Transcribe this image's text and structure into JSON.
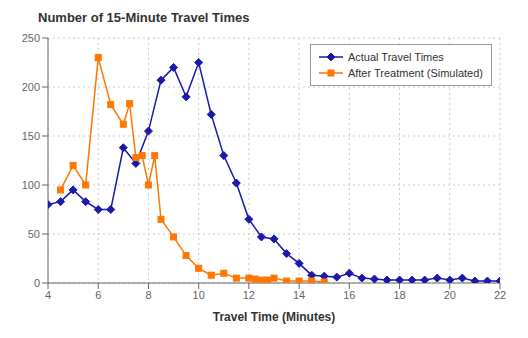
{
  "chart_data": {
    "type": "line",
    "title": "Number of 15-Minute Travel Times",
    "x_label": "Travel Time (Minutes)",
    "series": [
      {
        "name": "Actual Travel Times",
        "color": "#1a1aaa",
        "marker": "diamond",
        "x": [
          4,
          4.5,
          5,
          5.5,
          6,
          6.5,
          7,
          7.5,
          8,
          8.5,
          9,
          9.5,
          10,
          10.5,
          11,
          11.5,
          12,
          12.5,
          13,
          13.5,
          14,
          14.5,
          15,
          15.5,
          16,
          16.5,
          17,
          17.5,
          18,
          18.5,
          19,
          19.5,
          20,
          20.5,
          21,
          21.5,
          22
        ],
        "values": [
          80,
          83,
          95,
          83,
          75,
          75,
          138,
          122,
          155,
          207,
          220,
          190,
          225,
          172,
          130,
          102,
          65,
          47,
          45,
          30,
          20,
          8,
          7,
          6,
          10,
          5,
          4,
          3,
          3,
          3,
          3,
          5,
          3,
          5,
          2,
          2,
          2
        ]
      },
      {
        "name": "After Treatment (Simulated)",
        "color": "#ff7700",
        "marker": "square",
        "x": [
          4.5,
          5,
          5.5,
          6,
          6.5,
          7,
          7.25,
          7.5,
          7.75,
          8,
          8.25,
          8.5,
          9,
          9.5,
          10,
          10.5,
          11,
          11.5,
          12,
          12.25,
          12.5,
          12.75,
          13,
          13.5,
          14,
          14.5,
          15
        ],
        "values": [
          95,
          120,
          100,
          230,
          182,
          162,
          183,
          128,
          130,
          100,
          130,
          65,
          47,
          28,
          15,
          8,
          10,
          5,
          5,
          4,
          3,
          3,
          5,
          2,
          2,
          2,
          1
        ]
      }
    ],
    "xlim": [
      4,
      22
    ],
    "ylim": [
      0,
      250
    ],
    "xticks": [
      4,
      6,
      8,
      10,
      12,
      14,
      16,
      18,
      20,
      22
    ],
    "yticks": [
      0,
      50,
      100,
      150,
      200,
      250
    ],
    "grid": true,
    "legend": "upper right"
  }
}
